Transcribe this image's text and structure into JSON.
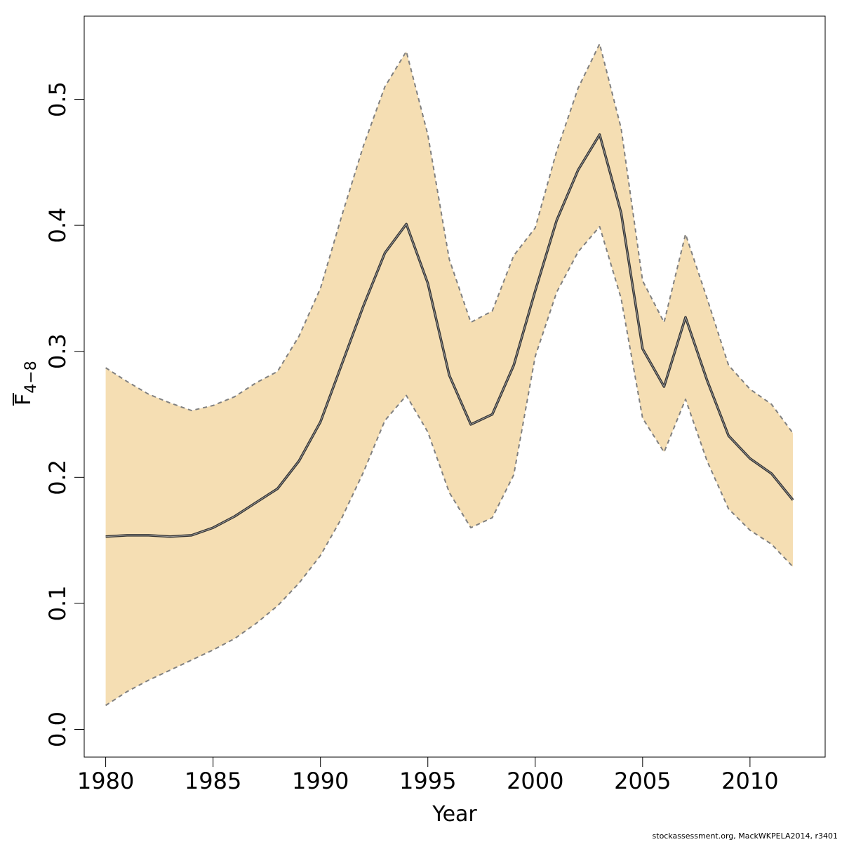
{
  "chart_data": {
    "type": "line",
    "xlabel": "Year",
    "ylabel": {
      "main": "F",
      "subscript": "4−8"
    },
    "xlim": [
      1979,
      2013.5
    ],
    "ylim": [
      -0.022,
      0.566
    ],
    "x_ticks": [
      1980,
      1985,
      1990,
      1995,
      2000,
      2005,
      2010
    ],
    "y_ticks": [
      0.0,
      0.1,
      0.2,
      0.3,
      0.4,
      0.5
    ],
    "y_tick_labels": [
      "0.0",
      "0.1",
      "0.2",
      "0.3",
      "0.4",
      "0.5"
    ],
    "grid": false,
    "band_color": "#F5DEB3",
    "line_color": "#000000",
    "band_edge_color": "#808080",
    "x": [
      1980,
      1981,
      1982,
      1983,
      1984,
      1985,
      1986,
      1987,
      1988,
      1989,
      1990,
      1991,
      1992,
      1993,
      1994,
      1995,
      1996,
      1997,
      1998,
      1999,
      2000,
      2001,
      2002,
      2003,
      2004,
      2005,
      2006,
      2007,
      2008,
      2009,
      2010,
      2011,
      2012
    ],
    "series": [
      {
        "role": "estimate",
        "values": [
          0.153,
          0.154,
          0.154,
          0.153,
          0.154,
          0.16,
          0.169,
          0.18,
          0.191,
          0.213,
          0.244,
          0.29,
          0.336,
          0.378,
          0.401,
          0.354,
          0.281,
          0.242,
          0.25,
          0.289,
          0.348,
          0.404,
          0.444,
          0.472,
          0.41,
          0.302,
          0.272,
          0.327,
          0.277,
          0.233,
          0.215,
          0.203,
          0.182
        ]
      },
      {
        "role": "upper",
        "values": [
          0.287,
          0.276,
          0.266,
          0.259,
          0.253,
          0.257,
          0.264,
          0.275,
          0.284,
          0.312,
          0.35,
          0.408,
          0.463,
          0.51,
          0.538,
          0.472,
          0.373,
          0.323,
          0.332,
          0.376,
          0.398,
          0.459,
          0.509,
          0.544,
          0.477,
          0.356,
          0.323,
          0.393,
          0.342,
          0.289,
          0.27,
          0.258,
          0.235
        ]
      },
      {
        "role": "lower",
        "values": [
          0.019,
          0.03,
          0.039,
          0.047,
          0.055,
          0.063,
          0.072,
          0.084,
          0.098,
          0.116,
          0.138,
          0.168,
          0.204,
          0.245,
          0.265,
          0.236,
          0.188,
          0.16,
          0.168,
          0.202,
          0.296,
          0.347,
          0.379,
          0.399,
          0.342,
          0.247,
          0.22,
          0.262,
          0.213,
          0.175,
          0.158,
          0.147,
          0.129
        ]
      }
    ]
  },
  "footer": {
    "note": "stockassessment.org, MackWKPELA2014, r3401"
  }
}
